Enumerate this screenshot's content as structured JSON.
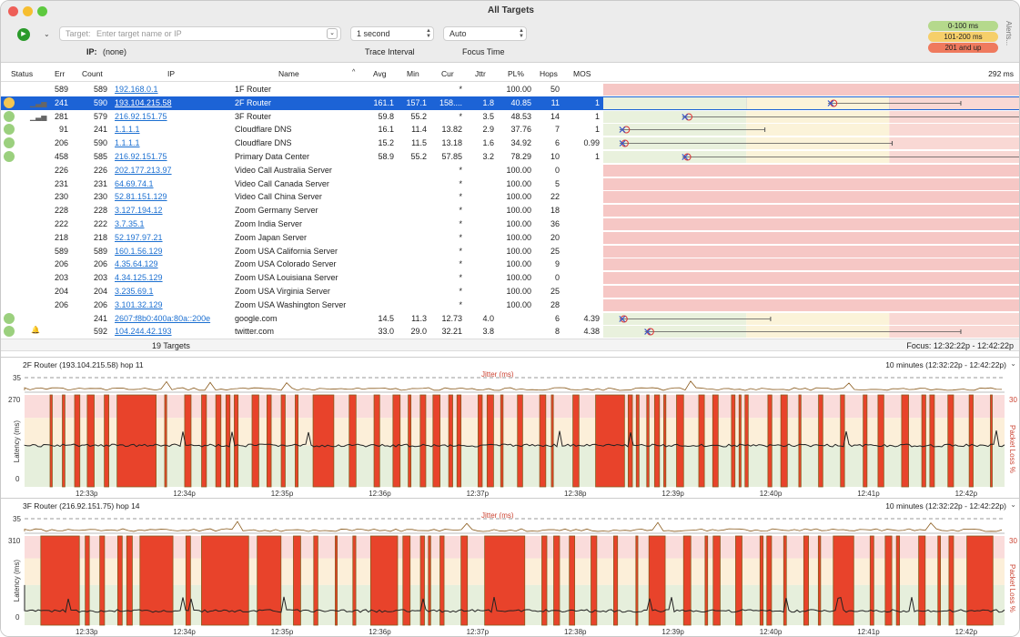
{
  "window": {
    "title": "All Targets"
  },
  "toolbar": {
    "target_label": "Target:",
    "target_placeholder": "Enter target name or IP",
    "ip_label": "IP:",
    "ip_value": "(none)",
    "interval_value": "1 second",
    "interval_label": "Trace Interval",
    "focus_value": "Auto",
    "focus_label": "Focus Time",
    "alerts_label": "Alerts..."
  },
  "legend": [
    {
      "label": "0-100 ms",
      "color": "#b5d98c"
    },
    {
      "label": "101-200 ms",
      "color": "#f6cf6a"
    },
    {
      "label": "201 and up",
      "color": "#ef7a5e"
    }
  ],
  "table": {
    "columns": [
      "Status",
      "Err",
      "Count",
      "IP",
      "Name",
      "Avg",
      "Min",
      "Cur",
      "Jttr",
      "PL%",
      "Hops",
      "MOS"
    ],
    "graph_scale": "292 ms",
    "rows": [
      {
        "status": "",
        "icon": "",
        "err": "589",
        "count": "589",
        "ip": "192.168.0.1",
        "name": "1F Router",
        "avg": "",
        "min": "",
        "cur": "*",
        "jttr": "",
        "pl": "100.00",
        "hops": "50",
        "mos": "",
        "sel": false,
        "marker": null
      },
      {
        "status": "yellow",
        "icon": "bars",
        "err": "241",
        "count": "590",
        "ip": "193.104.215.58",
        "name": "2F Router",
        "avg": "161.1",
        "min": "157.1",
        "cur": "158....",
        "jttr": "1.8",
        "pl": "40.85",
        "hops": "11",
        "mos": "1",
        "sel": true,
        "marker": {
          "lo": 157.1,
          "avg": 161.1,
          "hi": 250
        }
      },
      {
        "status": "green",
        "icon": "bars",
        "err": "281",
        "count": "579",
        "ip": "216.92.151.75",
        "name": "3F Router",
        "avg": "59.8",
        "min": "55.2",
        "cur": "*",
        "jttr": "3.5",
        "pl": "48.53",
        "hops": "14",
        "mos": "1",
        "sel": false,
        "marker": {
          "lo": 55.2,
          "avg": 59.8,
          "hi": 292
        }
      },
      {
        "status": "green",
        "icon": "",
        "err": "91",
        "count": "241",
        "ip": "1.1.1.1",
        "name": "Cloudflare DNS",
        "avg": "16.1",
        "min": "11.4",
        "cur": "13.82",
        "jttr": "2.9",
        "pl": "37.76",
        "hops": "7",
        "mos": "1",
        "sel": false,
        "marker": {
          "lo": 11.4,
          "avg": 16.1,
          "hi": 113
        }
      },
      {
        "status": "green",
        "icon": "",
        "err": "206",
        "count": "590",
        "ip": "1.1.1.1",
        "name": "Cloudflare DNS",
        "avg": "15.2",
        "min": "11.5",
        "cur": "13.18",
        "jttr": "1.6",
        "pl": "34.92",
        "hops": "6",
        "mos": "0.99",
        "sel": false,
        "marker": {
          "lo": 11.5,
          "avg": 15.2,
          "hi": 202
        }
      },
      {
        "status": "green",
        "icon": "",
        "err": "458",
        "count": "585",
        "ip": "216.92.151.75",
        "name": "Primary Data Center",
        "avg": "58.9",
        "min": "55.2",
        "cur": "57.85",
        "jttr": "3.2",
        "pl": "78.29",
        "hops": "10",
        "mos": "1",
        "sel": false,
        "marker": {
          "lo": 55.2,
          "avg": 58.9,
          "hi": 292
        }
      },
      {
        "status": "",
        "icon": "",
        "err": "226",
        "count": "226",
        "ip": "202.177.213.97",
        "name": "Video Call Australia Server",
        "avg": "",
        "min": "",
        "cur": "*",
        "jttr": "",
        "pl": "100.00",
        "hops": "0",
        "mos": "",
        "sel": false,
        "marker": null
      },
      {
        "status": "",
        "icon": "",
        "err": "231",
        "count": "231",
        "ip": "64.69.74.1",
        "name": "Video Call Canada Server",
        "avg": "",
        "min": "",
        "cur": "*",
        "jttr": "",
        "pl": "100.00",
        "hops": "5",
        "mos": "",
        "sel": false,
        "marker": null
      },
      {
        "status": "",
        "icon": "",
        "err": "230",
        "count": "230",
        "ip": "52.81.151.129",
        "name": "Video Call China Server",
        "avg": "",
        "min": "",
        "cur": "*",
        "jttr": "",
        "pl": "100.00",
        "hops": "22",
        "mos": "",
        "sel": false,
        "marker": null
      },
      {
        "status": "",
        "icon": "",
        "err": "228",
        "count": "228",
        "ip": "3.127.194.12",
        "name": "Zoom Germany Server",
        "avg": "",
        "min": "",
        "cur": "*",
        "jttr": "",
        "pl": "100.00",
        "hops": "18",
        "mos": "",
        "sel": false,
        "marker": null
      },
      {
        "status": "",
        "icon": "",
        "err": "222",
        "count": "222",
        "ip": "3.7.35.1",
        "name": "Zoom India Server",
        "avg": "",
        "min": "",
        "cur": "*",
        "jttr": "",
        "pl": "100.00",
        "hops": "36",
        "mos": "",
        "sel": false,
        "marker": null
      },
      {
        "status": "",
        "icon": "",
        "err": "218",
        "count": "218",
        "ip": "52.197.97.21",
        "name": "Zoom Japan Server",
        "avg": "",
        "min": "",
        "cur": "*",
        "jttr": "",
        "pl": "100.00",
        "hops": "20",
        "mos": "",
        "sel": false,
        "marker": null
      },
      {
        "status": "",
        "icon": "",
        "err": "589",
        "count": "589",
        "ip": "160.1.56.129",
        "name": "Zoom USA California Server",
        "avg": "",
        "min": "",
        "cur": "*",
        "jttr": "",
        "pl": "100.00",
        "hops": "25",
        "mos": "",
        "sel": false,
        "marker": null
      },
      {
        "status": "",
        "icon": "",
        "err": "206",
        "count": "206",
        "ip": "4.35.64.129",
        "name": "Zoom USA Colorado Server",
        "avg": "",
        "min": "",
        "cur": "*",
        "jttr": "",
        "pl": "100.00",
        "hops": "9",
        "mos": "",
        "sel": false,
        "marker": null
      },
      {
        "status": "",
        "icon": "",
        "err": "203",
        "count": "203",
        "ip": "4.34.125.129",
        "name": "Zoom USA Louisiana Server",
        "avg": "",
        "min": "",
        "cur": "*",
        "jttr": "",
        "pl": "100.00",
        "hops": "0",
        "mos": "",
        "sel": false,
        "marker": null
      },
      {
        "status": "",
        "icon": "",
        "err": "204",
        "count": "204",
        "ip": "3.235.69.1",
        "name": "Zoom USA Virginia Server",
        "avg": "",
        "min": "",
        "cur": "*",
        "jttr": "",
        "pl": "100.00",
        "hops": "25",
        "mos": "",
        "sel": false,
        "marker": null
      },
      {
        "status": "",
        "icon": "",
        "err": "206",
        "count": "206",
        "ip": "3.101.32.129",
        "name": "Zoom USA Washington Server",
        "avg": "",
        "min": "",
        "cur": "*",
        "jttr": "",
        "pl": "100.00",
        "hops": "28",
        "mos": "",
        "sel": false,
        "marker": null
      },
      {
        "status": "green",
        "icon": "",
        "err": "",
        "count": "241",
        "ip": "2607:f8b0:400a:80a::200e",
        "name": "google.com",
        "avg": "14.5",
        "min": "11.3",
        "cur": "12.73",
        "jttr": "4.0",
        "pl": "",
        "hops": "6",
        "mos": "4.39",
        "sel": false,
        "marker": {
          "lo": 11.3,
          "avg": 14.5,
          "hi": 117
        }
      },
      {
        "status": "green",
        "icon": "bell",
        "err": "",
        "count": "592",
        "ip": "104.244.42.193",
        "name": "twitter.com",
        "avg": "33.0",
        "min": "29.0",
        "cur": "32.21",
        "jttr": "3.8",
        "pl": "",
        "hops": "8",
        "mos": "4.38",
        "sel": false,
        "marker": {
          "lo": 29.0,
          "avg": 33.0,
          "hi": 250
        }
      }
    ],
    "footer_count": "19 Targets",
    "footer_focus": "Focus: 12:32:22p - 12:42:22p"
  },
  "charts": [
    {
      "title": "2F Router (193.104.215.58) hop 11",
      "range": "10 minutes (12:32:22p - 12:42:22p)",
      "jitter_label": "Jitter (ms)",
      "jitter_max": "35",
      "lat_max": "270",
      "lat_min": "0",
      "pl_max": "30",
      "ylabel": "Latency (ms)",
      "y2label": "Packet Loss %",
      "ticks": [
        "12:33p",
        "12:34p",
        "12:35p",
        "12:36p",
        "12:37p",
        "12:38p",
        "12:39p",
        "12:40p",
        "12:41p",
        "12:42p"
      ]
    },
    {
      "title": "3F Router (216.92.151.75) hop 14",
      "range": "10 minutes (12:32:22p - 12:42:22p)",
      "jitter_label": "Jitter (ms)",
      "jitter_max": "35",
      "lat_max": "310",
      "lat_min": "0",
      "pl_max": "30",
      "ylabel": "Latency (ms)",
      "y2label": "Packet Loss %",
      "ticks": [
        "12:33p",
        "12:34p",
        "12:35p",
        "12:36p",
        "12:37p",
        "12:38p",
        "12:39p",
        "12:40p",
        "12:41p",
        "12:42p"
      ]
    }
  ]
}
